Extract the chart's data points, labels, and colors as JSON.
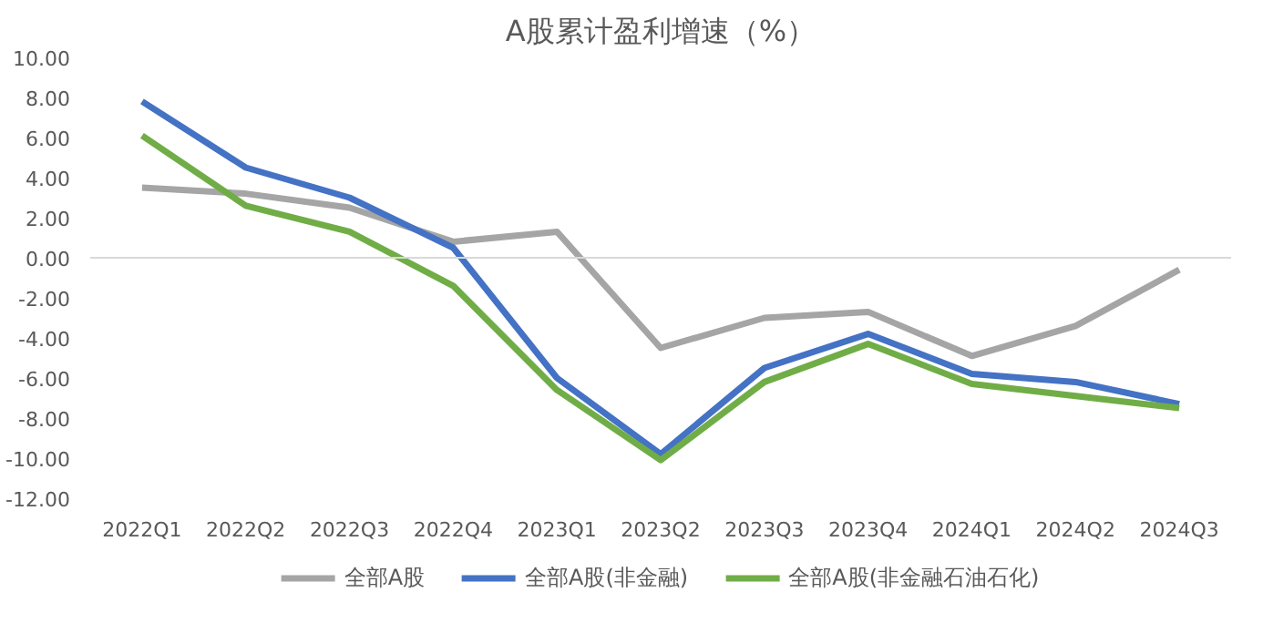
{
  "chart_data": {
    "type": "line",
    "title": "A股累计盈利增速（%）",
    "categories": [
      "2022Q1",
      "2022Q2",
      "2022Q3",
      "2022Q4",
      "2023Q1",
      "2023Q2",
      "2023Q3",
      "2023Q4",
      "2024Q1",
      "2024Q2",
      "2024Q3"
    ],
    "series": [
      {
        "name": "全部A股",
        "color": "#a5a5a5",
        "values": [
          3.5,
          3.2,
          2.5,
          0.8,
          1.3,
          -4.5,
          -3.0,
          -2.7,
          -4.9,
          -3.4,
          -0.6
        ]
      },
      {
        "name": "全部A股(非金融)",
        "color": "#4472c4",
        "values": [
          7.8,
          4.5,
          3.0,
          0.5,
          -6.0,
          -9.8,
          -5.5,
          -3.8,
          -5.8,
          -6.2,
          -7.3
        ]
      },
      {
        "name": "全部A股(非金融石油石化)",
        "color": "#70ad47",
        "values": [
          6.1,
          2.6,
          1.3,
          -1.4,
          -6.6,
          -10.1,
          -6.2,
          -4.3,
          -6.3,
          -6.9,
          -7.5
        ]
      }
    ],
    "ylim": [
      -12,
      10
    ],
    "yticks": [
      {
        "value": -12,
        "label": "-12.00"
      },
      {
        "value": -10,
        "label": "-10.00"
      },
      {
        "value": -8,
        "label": "-8.00"
      },
      {
        "value": -6,
        "label": "-6.00"
      },
      {
        "value": -4,
        "label": "-4.00"
      },
      {
        "value": -2,
        "label": "-2.00"
      },
      {
        "value": 0,
        "label": "0.00"
      },
      {
        "value": 2,
        "label": "2.00"
      },
      {
        "value": 4,
        "label": "4.00"
      },
      {
        "value": 6,
        "label": "6.00"
      },
      {
        "value": 8,
        "label": "8.00"
      },
      {
        "value": 10,
        "label": "10.00"
      }
    ],
    "ref_lines": [
      {
        "axis": "y",
        "value": 0,
        "color": "#d9d9d9"
      }
    ],
    "grid": false,
    "legend": "bottom",
    "marker": "none",
    "line_style": "solid"
  }
}
